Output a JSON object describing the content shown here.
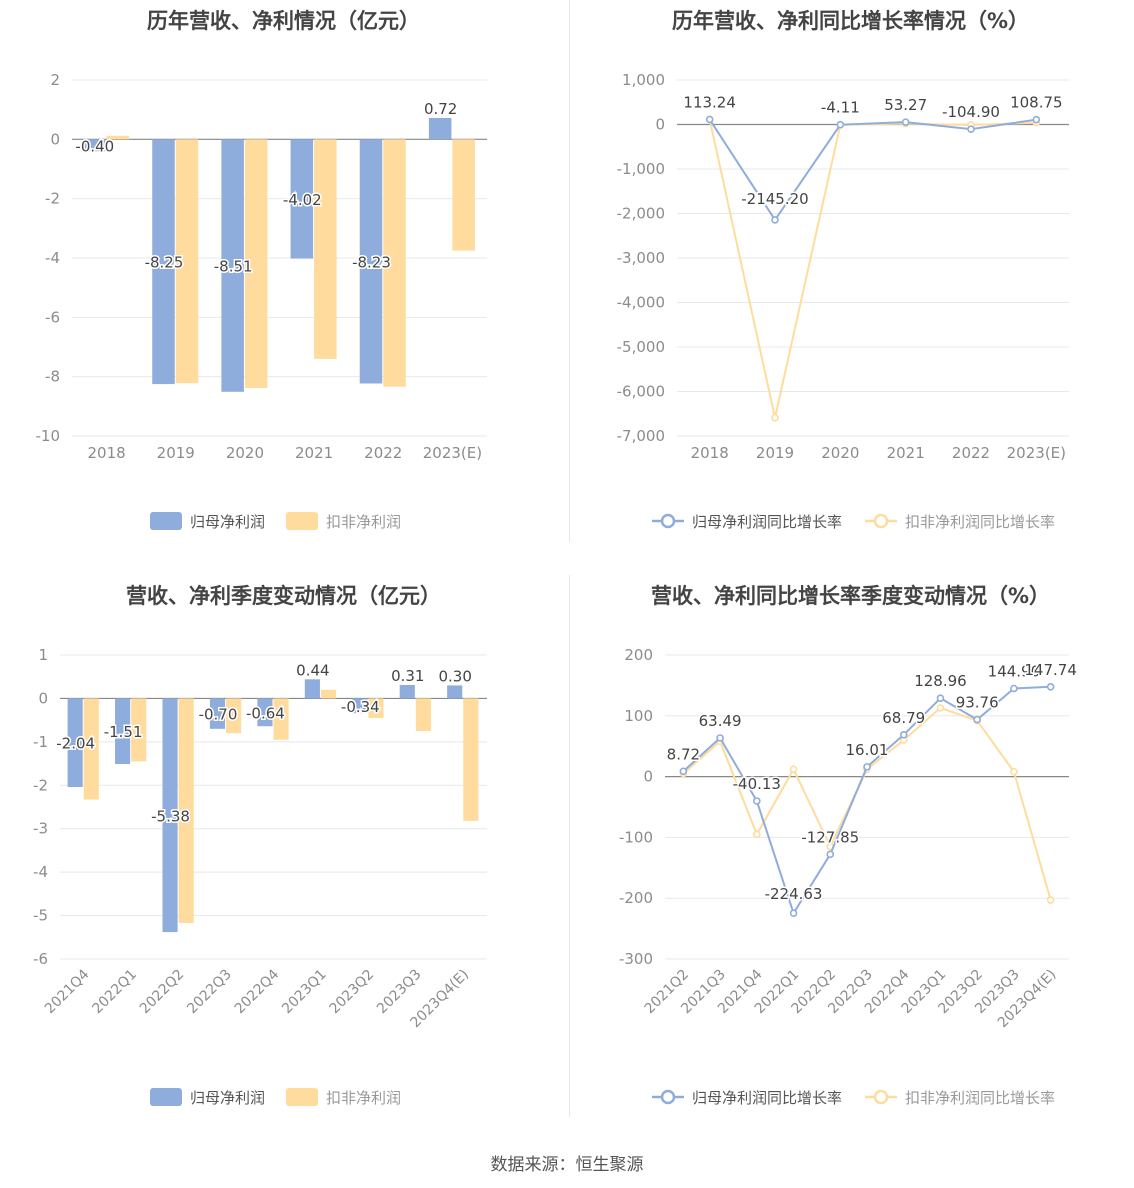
{
  "source": "数据来源：恒生聚源",
  "colors": {
    "series1": "#8faddc",
    "series2": "#ffdc9e",
    "grid": "#e6e8ee",
    "axis": "#888888",
    "tick": "#8c8c8c",
    "label": "#444444"
  },
  "chart_data": [
    {
      "type": "bar",
      "title": "历年营收、净利情况（亿元）",
      "categories": [
        "2018",
        "2019",
        "2020",
        "2021",
        "2022",
        "2023(E)"
      ],
      "series": [
        {
          "name": "归母净利润",
          "values": [
            -0.4,
            -8.25,
            -8.51,
            -4.02,
            -8.23,
            0.72
          ],
          "labels": [
            "-0.40",
            "-8.25",
            "-8.51",
            "-4.02",
            "-8.23",
            "0.72"
          ]
        },
        {
          "name": "扣非净利润",
          "values": [
            0.12,
            -8.22,
            -8.38,
            -7.4,
            -8.34,
            -3.75
          ]
        }
      ],
      "yticks": [
        "2",
        "0",
        "-2",
        "-4",
        "-6",
        "-8",
        "-10"
      ],
      "ylim": [
        -10,
        2
      ],
      "legend": "bottom",
      "grid": true
    },
    {
      "type": "line",
      "title": "历年营收、净利同比增长率情况（%）",
      "categories": [
        "2018",
        "2019",
        "2020",
        "2021",
        "2022",
        "2023(E)"
      ],
      "series": [
        {
          "name": "归母净利润同比增长率",
          "values": [
            113.24,
            -2145.2,
            -4.11,
            53.27,
            -104.9,
            108.75
          ],
          "labels": [
            "113.24",
            "-2145.20",
            "-4.11",
            "53.27",
            "-104.90",
            "108.75"
          ]
        },
        {
          "name": "扣非净利润同比增长率",
          "values": [
            113.24,
            -6590,
            -5,
            20,
            -10,
            40
          ]
        }
      ],
      "yticks": [
        "1,000",
        "0",
        "-1,000",
        "-2,000",
        "-3,000",
        "-4,000",
        "-5,000",
        "-6,000",
        "-7,000"
      ],
      "ylim": [
        -7000,
        1000
      ],
      "legend": "bottom",
      "grid": true
    },
    {
      "type": "bar",
      "title": "营收、净利季度变动情况（亿元）",
      "categories": [
        "2021Q4",
        "2022Q1",
        "2022Q2",
        "2022Q3",
        "2022Q4",
        "2023Q1",
        "2023Q2",
        "2023Q3",
        "2023Q4(E)"
      ],
      "series": [
        {
          "name": "归母净利润",
          "values": [
            -2.04,
            -1.51,
            -5.38,
            -0.7,
            -0.64,
            0.44,
            -0.34,
            0.31,
            0.3
          ],
          "labels": [
            "-2.04",
            "-1.51",
            "-5.38",
            "-0.70",
            "-0.64",
            "0.44",
            "-0.34",
            "0.31",
            "0.30"
          ]
        },
        {
          "name": "扣非净利润",
          "values": [
            -2.33,
            -1.45,
            -5.17,
            -0.8,
            -0.95,
            0.2,
            -0.45,
            -0.75,
            -2.82
          ]
        }
      ],
      "yticks": [
        "1",
        "0",
        "-1",
        "-2",
        "-3",
        "-4",
        "-5",
        "-6"
      ],
      "ylim": [
        -6,
        1
      ],
      "legend": "bottom",
      "grid": true
    },
    {
      "type": "line",
      "title": "营收、净利同比增长率季度变动情况（%）",
      "categories": [
        "2021Q2",
        "2021Q3",
        "2021Q4",
        "2022Q1",
        "2022Q2",
        "2022Q3",
        "2022Q4",
        "2023Q1",
        "2023Q2",
        "2023Q3",
        "2023Q4(E)"
      ],
      "series": [
        {
          "name": "归母净利润同比增长率",
          "values": [
            8.72,
            63.49,
            -40.13,
            -224.63,
            -127.85,
            16.01,
            68.79,
            128.96,
            93.76,
            144.9,
            147.74
          ],
          "labels": [
            "8.72",
            "63.49",
            "-40.13",
            "-224.63",
            "-127.85",
            "16.01",
            "68.79",
            "128.96",
            "93.76",
            "144.90",
            "147.74"
          ]
        },
        {
          "name": "扣非净利润同比增长率",
          "values": [
            5,
            58,
            -95,
            12,
            -115,
            12,
            60,
            113,
            92,
            8,
            -203
          ]
        }
      ],
      "yticks": [
        "200",
        "100",
        "0",
        "-100",
        "-200",
        "-300"
      ],
      "ylim": [
        -300,
        200
      ],
      "legend": "bottom",
      "grid": true
    }
  ]
}
